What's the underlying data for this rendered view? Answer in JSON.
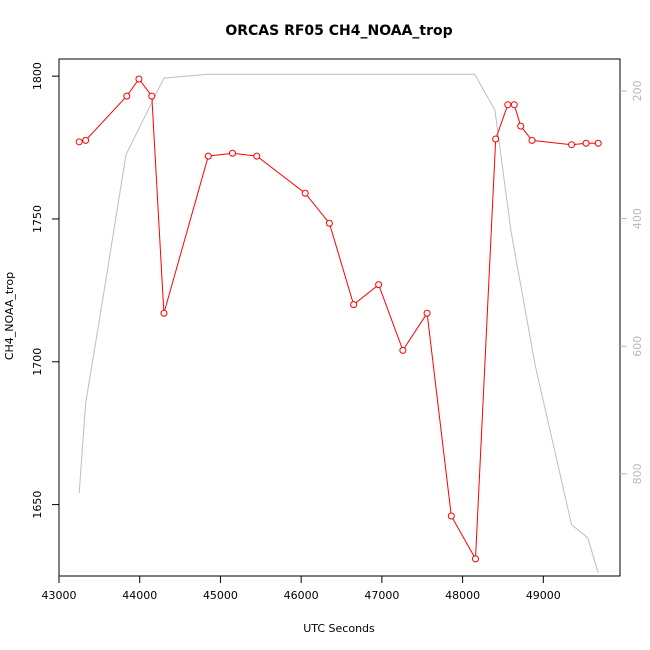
{
  "chart_data": {
    "type": "line",
    "title": "ORCAS RF05 CH4_NOAA_trop",
    "xlabel": "UTC Seconds",
    "ylabel": "CH4_NOAA_trop",
    "xlim": [
      43000,
      49950
    ],
    "ylim": [
      1625,
      1806
    ],
    "y2lim": [
      150,
      960
    ],
    "y2_reversed": true,
    "x_ticks": [
      43000,
      44000,
      45000,
      46000,
      47000,
      48000,
      49000
    ],
    "y_ticks": [
      1650,
      1700,
      1750,
      1800
    ],
    "y2_ticks": [
      200,
      400,
      600,
      800
    ],
    "colors": {
      "ch4": "#ff0000",
      "pressure": "#bebebe"
    },
    "grid": false,
    "series": [
      {
        "key": "ch4",
        "axis": "left",
        "markers": true,
        "x": [
          43250,
          43330,
          43840,
          43990,
          44150,
          44300,
          44850,
          45150,
          45450,
          46050,
          46350,
          46650,
          46960,
          47260,
          47560,
          47860,
          48160,
          48410,
          48560,
          48640,
          48720,
          48860,
          49350,
          49530,
          49680
        ],
        "values": [
          1777,
          1777.5,
          1793,
          1799,
          1793,
          1717,
          1772,
          1773,
          1772,
          1759,
          1748.5,
          1720,
          1727,
          1704,
          1717,
          1646,
          1631,
          1778,
          1790,
          1790,
          1782.5,
          1777.5,
          1776,
          1776.5,
          1776.5
        ]
      },
      {
        "key": "pressure",
        "axis": "right",
        "markers": false,
        "x": [
          43250,
          43330,
          43550,
          43830,
          44300,
          44850,
          45500,
          46500,
          47500,
          48150,
          48400,
          48600,
          48900,
          49350,
          49550,
          49680
        ],
        "values": [
          830,
          690,
          520,
          300,
          180,
          174,
          174,
          174,
          174,
          174,
          230,
          420,
          630,
          880,
          900,
          955
        ]
      }
    ]
  }
}
